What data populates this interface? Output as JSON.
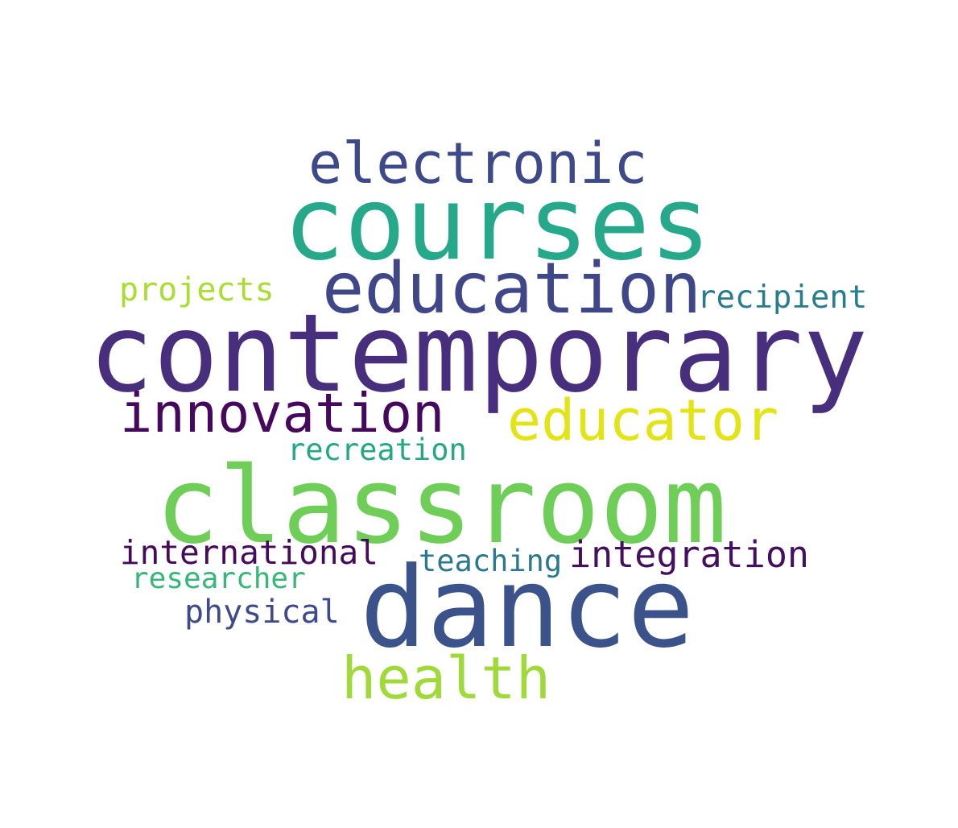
{
  "words": [
    {
      "key": "electronic",
      "text": "electronic",
      "color": "#3e4989"
    },
    {
      "key": "courses",
      "text": "courses",
      "color": "#26a98b"
    },
    {
      "key": "education",
      "text": "education",
      "color": "#3f4788"
    },
    {
      "key": "projects",
      "text": "projects",
      "color": "#aadc32"
    },
    {
      "key": "recipient",
      "text": "recipient",
      "color": "#287c8e"
    },
    {
      "key": "contemporary",
      "text": "contemporary",
      "color": "#472f7d"
    },
    {
      "key": "innovation",
      "text": "innovation",
      "color": "#46085c"
    },
    {
      "key": "educator",
      "text": "educator",
      "color": "#e2e418"
    },
    {
      "key": "recreation",
      "text": "recreation",
      "color": "#24a884"
    },
    {
      "key": "classroom",
      "text": "classroom",
      "color": "#6ece58"
    },
    {
      "key": "international",
      "text": "international",
      "color": "#450a5c"
    },
    {
      "key": "integration",
      "text": "integration",
      "color": "#440f5e"
    },
    {
      "key": "teaching",
      "text": "teaching",
      "color": "#2a788e"
    },
    {
      "key": "researcher",
      "text": "researcher",
      "color": "#35b779"
    },
    {
      "key": "dance",
      "text": "dance",
      "color": "#3b528b"
    },
    {
      "key": "physical",
      "text": "physical",
      "color": "#3e4a89"
    },
    {
      "key": "health",
      "text": "health",
      "color": "#9fda3a"
    }
  ]
}
